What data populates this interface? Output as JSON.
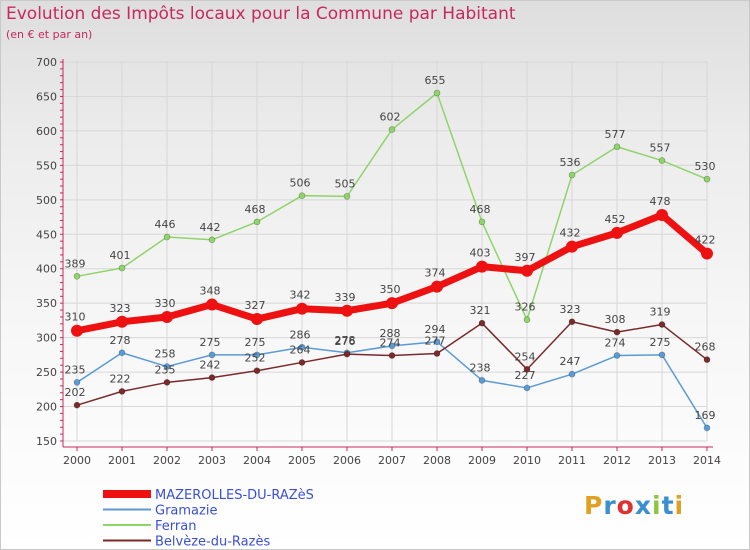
{
  "title": "Evolution des Impôts locaux pour la Commune par Habitant",
  "subtitle": "(en € et par an)",
  "logo": {
    "text": "Proxiti",
    "colors": [
      "#e0a020",
      "#3a8fd0",
      "#e03030",
      "#3a8fd0",
      "#8dc63f",
      "#3a8fd0",
      "#e0a020"
    ]
  },
  "chart_data": {
    "type": "line",
    "x": [
      2000,
      2001,
      2002,
      2003,
      2004,
      2005,
      2006,
      2007,
      2008,
      2009,
      2010,
      2011,
      2012,
      2013,
      2014
    ],
    "ylim": [
      150,
      700
    ],
    "yticks": [
      150,
      200,
      250,
      300,
      350,
      400,
      450,
      500,
      550,
      600,
      650,
      700
    ],
    "grid": true,
    "legend_position": "bottom-left",
    "series": [
      {
        "name": "Ferran",
        "color": "#8fd46a",
        "values": [
          389,
          401,
          446,
          442,
          468,
          506,
          505,
          602,
          655,
          468,
          326,
          536,
          577,
          557,
          530
        ]
      },
      {
        "name": "Gramazie",
        "color": "#5b9bd5",
        "values": [
          235,
          278,
          258,
          275,
          275,
          286,
          278,
          288,
          294,
          238,
          227,
          247,
          274,
          275,
          169
        ]
      },
      {
        "name": "Belvèze-du-Razès",
        "color": "#7a2a2a",
        "values": [
          202,
          222,
          235,
          242,
          252,
          264,
          276,
          274,
          277,
          321,
          254,
          323,
          308,
          319,
          268
        ]
      },
      {
        "name": "MAZEROLLES-DU-RAZèS",
        "color": "#ee1111",
        "values": [
          310,
          323,
          330,
          348,
          327,
          342,
          339,
          350,
          374,
          403,
          397,
          432,
          452,
          478,
          422
        ]
      }
    ],
    "legend_order": [
      "MAZEROLLES-DU-RAZèS",
      "Gramazie",
      "Ferran",
      "Belvèze-du-Razès"
    ]
  }
}
